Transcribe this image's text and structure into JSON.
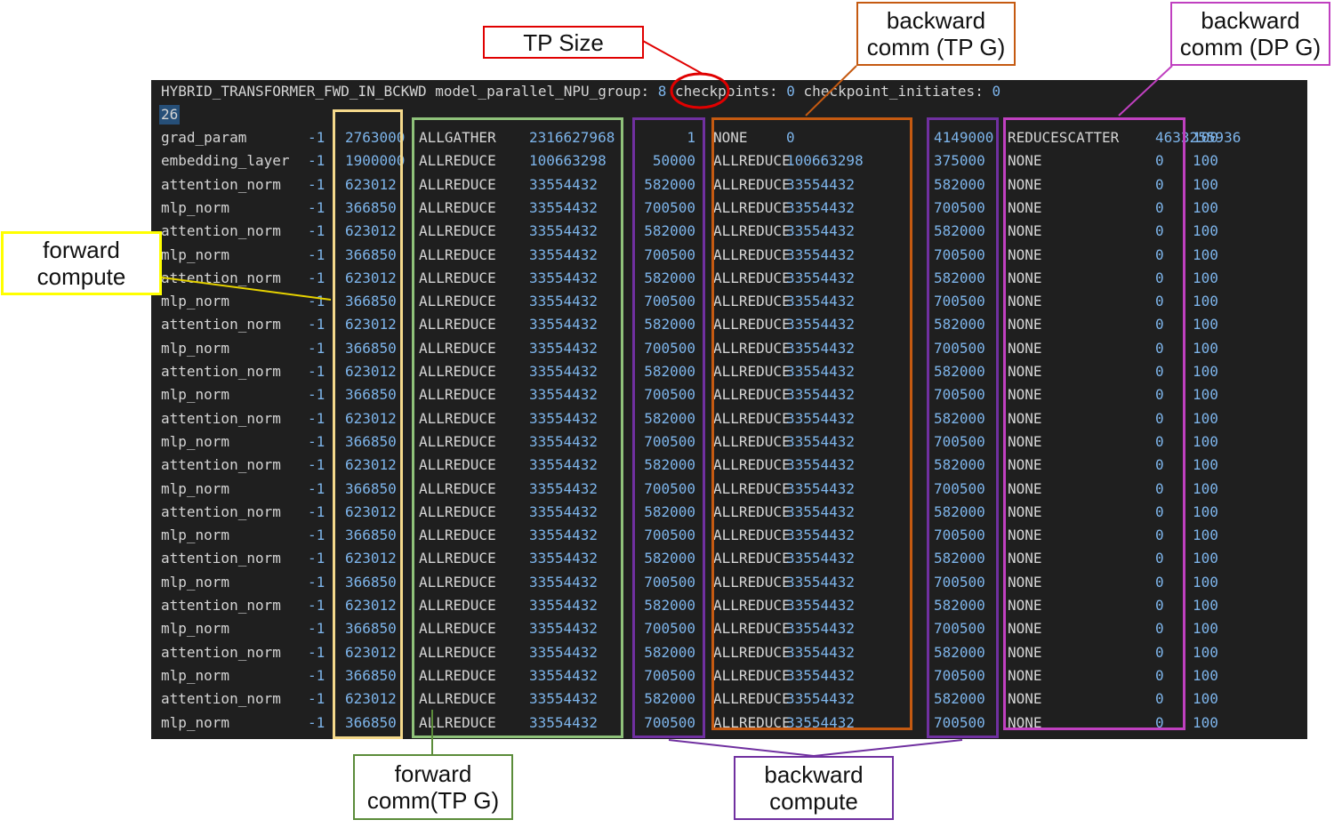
{
  "header": {
    "name": "HYBRID_TRANSFORMER_FWD_IN_BCKWD",
    "mp_key": "model_parallel_NPU_group:",
    "mp_value": "8",
    "cp_key": "checkpoints:",
    "cp_value": "0",
    "ci_key": "checkpoint_initiates:",
    "ci_value": "0"
  },
  "layer_count": "26",
  "rows": [
    [
      "grad_param",
      "-1",
      "2763000",
      "ALLGATHER",
      "2316627968",
      "1",
      "NONE",
      "0",
      "4149000",
      "REDUCESCATTER",
      "4633255936",
      "100"
    ],
    [
      "embedding_layer",
      "-1",
      "1900000",
      "ALLREDUCE",
      "100663298",
      "50000",
      "ALLREDUCE",
      "100663298",
      "375000",
      "NONE",
      "0",
      "100"
    ],
    [
      "attention_norm",
      "-1",
      "623012",
      "ALLREDUCE",
      "33554432",
      "582000",
      "ALLREDUCE",
      "33554432",
      "582000",
      "NONE",
      "0",
      "100"
    ],
    [
      "mlp_norm",
      "-1",
      "366850",
      "ALLREDUCE",
      "33554432",
      "700500",
      "ALLREDUCE",
      "33554432",
      "700500",
      "NONE",
      "0",
      "100"
    ],
    [
      "attention_norm",
      "-1",
      "623012",
      "ALLREDUCE",
      "33554432",
      "582000",
      "ALLREDUCE",
      "33554432",
      "582000",
      "NONE",
      "0",
      "100"
    ],
    [
      "mlp_norm",
      "-1",
      "366850",
      "ALLREDUCE",
      "33554432",
      "700500",
      "ALLREDUCE",
      "33554432",
      "700500",
      "NONE",
      "0",
      "100"
    ],
    [
      "attention_norm",
      "-1",
      "623012",
      "ALLREDUCE",
      "33554432",
      "582000",
      "ALLREDUCE",
      "33554432",
      "582000",
      "NONE",
      "0",
      "100"
    ],
    [
      "mlp_norm",
      "-1",
      "366850",
      "ALLREDUCE",
      "33554432",
      "700500",
      "ALLREDUCE",
      "33554432",
      "700500",
      "NONE",
      "0",
      "100"
    ],
    [
      "attention_norm",
      "-1",
      "623012",
      "ALLREDUCE",
      "33554432",
      "582000",
      "ALLREDUCE",
      "33554432",
      "582000",
      "NONE",
      "0",
      "100"
    ],
    [
      "mlp_norm",
      "-1",
      "366850",
      "ALLREDUCE",
      "33554432",
      "700500",
      "ALLREDUCE",
      "33554432",
      "700500",
      "NONE",
      "0",
      "100"
    ],
    [
      "attention_norm",
      "-1",
      "623012",
      "ALLREDUCE",
      "33554432",
      "582000",
      "ALLREDUCE",
      "33554432",
      "582000",
      "NONE",
      "0",
      "100"
    ],
    [
      "mlp_norm",
      "-1",
      "366850",
      "ALLREDUCE",
      "33554432",
      "700500",
      "ALLREDUCE",
      "33554432",
      "700500",
      "NONE",
      "0",
      "100"
    ],
    [
      "attention_norm",
      "-1",
      "623012",
      "ALLREDUCE",
      "33554432",
      "582000",
      "ALLREDUCE",
      "33554432",
      "582000",
      "NONE",
      "0",
      "100"
    ],
    [
      "mlp_norm",
      "-1",
      "366850",
      "ALLREDUCE",
      "33554432",
      "700500",
      "ALLREDUCE",
      "33554432",
      "700500",
      "NONE",
      "0",
      "100"
    ],
    [
      "attention_norm",
      "-1",
      "623012",
      "ALLREDUCE",
      "33554432",
      "582000",
      "ALLREDUCE",
      "33554432",
      "582000",
      "NONE",
      "0",
      "100"
    ],
    [
      "mlp_norm",
      "-1",
      "366850",
      "ALLREDUCE",
      "33554432",
      "700500",
      "ALLREDUCE",
      "33554432",
      "700500",
      "NONE",
      "0",
      "100"
    ],
    [
      "attention_norm",
      "-1",
      "623012",
      "ALLREDUCE",
      "33554432",
      "582000",
      "ALLREDUCE",
      "33554432",
      "582000",
      "NONE",
      "0",
      "100"
    ],
    [
      "mlp_norm",
      "-1",
      "366850",
      "ALLREDUCE",
      "33554432",
      "700500",
      "ALLREDUCE",
      "33554432",
      "700500",
      "NONE",
      "0",
      "100"
    ],
    [
      "attention_norm",
      "-1",
      "623012",
      "ALLREDUCE",
      "33554432",
      "582000",
      "ALLREDUCE",
      "33554432",
      "582000",
      "NONE",
      "0",
      "100"
    ],
    [
      "mlp_norm",
      "-1",
      "366850",
      "ALLREDUCE",
      "33554432",
      "700500",
      "ALLREDUCE",
      "33554432",
      "700500",
      "NONE",
      "0",
      "100"
    ],
    [
      "attention_norm",
      "-1",
      "623012",
      "ALLREDUCE",
      "33554432",
      "582000",
      "ALLREDUCE",
      "33554432",
      "582000",
      "NONE",
      "0",
      "100"
    ],
    [
      "mlp_norm",
      "-1",
      "366850",
      "ALLREDUCE",
      "33554432",
      "700500",
      "ALLREDUCE",
      "33554432",
      "700500",
      "NONE",
      "0",
      "100"
    ],
    [
      "attention_norm",
      "-1",
      "623012",
      "ALLREDUCE",
      "33554432",
      "582000",
      "ALLREDUCE",
      "33554432",
      "582000",
      "NONE",
      "0",
      "100"
    ],
    [
      "mlp_norm",
      "-1",
      "366850",
      "ALLREDUCE",
      "33554432",
      "700500",
      "ALLREDUCE",
      "33554432",
      "700500",
      "NONE",
      "0",
      "100"
    ],
    [
      "attention_norm",
      "-1",
      "623012",
      "ALLREDUCE",
      "33554432",
      "582000",
      "ALLREDUCE",
      "33554432",
      "582000",
      "NONE",
      "0",
      "100"
    ],
    [
      "mlp_norm",
      "-1",
      "366850",
      "ALLREDUCE",
      "33554432",
      "700500",
      "ALLREDUCE",
      "33554432",
      "700500",
      "NONE",
      "0",
      "100"
    ]
  ],
  "annotations": {
    "tp_size": "TP Size",
    "forward_compute": [
      "forward",
      "compute"
    ],
    "forward_comm": [
      "forward",
      "comm(TP G)"
    ],
    "backward_compute": [
      "backward",
      "compute"
    ],
    "backward_comm_tp": [
      "backward",
      "comm (TP G)"
    ],
    "backward_comm_dp": [
      "backward",
      "comm (DP G)"
    ]
  },
  "colors": {
    "editor_bg": "#1f1f1f",
    "text": "#d4d4d4",
    "number": "#7db4ea",
    "forward_compute": "#f5d98b",
    "forward_comm": "#8fc27a",
    "backward_compute": "#7030a0",
    "backward_comm_tp": "#c55a11",
    "backward_comm_dp": "#c040c0",
    "tp_size": "#e00000",
    "forward_label": "#ffff00"
  }
}
